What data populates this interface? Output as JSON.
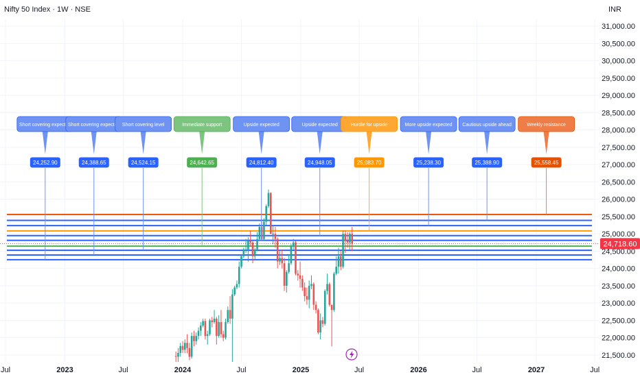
{
  "header": {
    "title": "Nifty 50 Index · 1W · NSE",
    "currency": "INR"
  },
  "colors": {
    "up": "#26a69a",
    "down": "#ef5350",
    "blue": "#2962ff",
    "light_blue": "#6f93f2",
    "green": "#4caf50",
    "orange": "#ff9800",
    "deep_orange": "#e65100",
    "grid": "#f0f3fa",
    "axis_text": "#131722",
    "last_price_bg": "#f23645"
  },
  "chart_data": {
    "type": "candlestick",
    "y_axis": {
      "min": 21300,
      "max": 31200,
      "ticks": [
        "21,500.00",
        "22,000.00",
        "22,500.00",
        "23,000.00",
        "23,500.00",
        "24,000.00",
        "24,500.00",
        "25,000.00",
        "25,500.00",
        "26,000.00",
        "26,500.00",
        "27,000.00",
        "27,500.00",
        "28,000.00",
        "28,500.00",
        "29,000.00",
        "29,500.00",
        "30,000.00",
        "30,500.00",
        "31,000.00"
      ]
    },
    "x_axis": {
      "labels": [
        {
          "label": "Jul",
          "date": "2022-07"
        },
        {
          "label": "2023",
          "date": "2023-01"
        },
        {
          "label": "Jul",
          "date": "2023-07"
        },
        {
          "label": "2024",
          "date": "2024-01"
        },
        {
          "label": "Jul",
          "date": "2024-07"
        },
        {
          "label": "2025",
          "date": "2025-01"
        },
        {
          "label": "Jul",
          "date": "2025-07"
        },
        {
          "label": "2026",
          "date": "2026-01"
        },
        {
          "label": "Jul",
          "date": "2026-07"
        },
        {
          "label": "2027",
          "date": "2027-01"
        },
        {
          "label": "Jul",
          "date": "2027-07"
        }
      ]
    },
    "last_price": {
      "value": 24718.6,
      "label": "24,718.60"
    },
    "levels": [
      {
        "date": "2022-11",
        "value": 24252.9,
        "label": "24,252.90",
        "note": "Short covering expected",
        "style": "light"
      },
      {
        "date": "2023-04",
        "value": 24388.65,
        "label": "24,388.65",
        "note": "Short covering expected",
        "style": "light"
      },
      {
        "date": "2023-09",
        "value": 24524.15,
        "label": "24,524.15",
        "note": "Short covering level",
        "style": "light"
      },
      {
        "date": "2024-03",
        "value": 24642.65,
        "label": "24,642.65",
        "note": "Immediate support",
        "style": "green"
      },
      {
        "date": "2024-09",
        "value": 24812.4,
        "label": "24,812.40",
        "note": "Upside expected",
        "style": "light"
      },
      {
        "date": "2025-03",
        "value": 24948.05,
        "label": "24,948.05",
        "note": "Upside expected",
        "style": "light"
      },
      {
        "date": "2025-08",
        "value": 25083.7,
        "label": "25,083.70",
        "note": "Hurdle for upside",
        "style": "orange"
      },
      {
        "date": "2026-02",
        "value": 25238.3,
        "label": "25,238.30",
        "note": "More upside expected",
        "style": "light"
      },
      {
        "date": "2026-08",
        "value": 25388.9,
        "label": "25,388.90",
        "note": "Cautious upside ahead",
        "style": "light"
      },
      {
        "date": "2027-02",
        "value": 25558.45,
        "label": "25,558.45",
        "note": "Weekly resistance",
        "style": "deep"
      }
    ],
    "candles": [
      {
        "d": "2023-12-11",
        "o": 21470,
        "h": 21600,
        "l": 21300,
        "c": 21450
      },
      {
        "d": "2023-12-18",
        "o": 21450,
        "h": 21700,
        "l": 21300,
        "c": 21560
      },
      {
        "d": "2023-12-25",
        "o": 21560,
        "h": 21850,
        "l": 21450,
        "c": 21760
      },
      {
        "d": "2024-01-01",
        "o": 21760,
        "h": 21900,
        "l": 21560,
        "c": 21650
      },
      {
        "d": "2024-01-08",
        "o": 21650,
        "h": 21950,
        "l": 21550,
        "c": 21850
      },
      {
        "d": "2024-01-15",
        "o": 21850,
        "h": 22100,
        "l": 21550,
        "c": 21700
      },
      {
        "d": "2024-01-22",
        "o": 21700,
        "h": 21850,
        "l": 21350,
        "c": 21450
      },
      {
        "d": "2024-01-29",
        "o": 21450,
        "h": 22150,
        "l": 21400,
        "c": 22050
      },
      {
        "d": "2024-02-05",
        "o": 22050,
        "h": 22200,
        "l": 21750,
        "c": 21900
      },
      {
        "d": "2024-02-12",
        "o": 21900,
        "h": 22150,
        "l": 21800,
        "c": 22050
      },
      {
        "d": "2024-02-19",
        "o": 22050,
        "h": 22300,
        "l": 21950,
        "c": 22200
      },
      {
        "d": "2024-02-26",
        "o": 22200,
        "h": 22450,
        "l": 22050,
        "c": 22350
      },
      {
        "d": "2024-03-04",
        "o": 22350,
        "h": 22550,
        "l": 22300,
        "c": 22480
      },
      {
        "d": "2024-03-11",
        "o": 22480,
        "h": 22550,
        "l": 21950,
        "c": 22050
      },
      {
        "d": "2024-03-18",
        "o": 22050,
        "h": 22200,
        "l": 21800,
        "c": 22100
      },
      {
        "d": "2024-03-25",
        "o": 22100,
        "h": 22550,
        "l": 22050,
        "c": 22500
      },
      {
        "d": "2024-04-01",
        "o": 22500,
        "h": 22600,
        "l": 22300,
        "c": 22450
      },
      {
        "d": "2024-04-08",
        "o": 22450,
        "h": 22800,
        "l": 22400,
        "c": 22550
      },
      {
        "d": "2024-04-15",
        "o": 22550,
        "h": 22600,
        "l": 21800,
        "c": 22050
      },
      {
        "d": "2024-04-22",
        "o": 22050,
        "h": 22650,
        "l": 22000,
        "c": 22450
      },
      {
        "d": "2024-04-29",
        "o": 22450,
        "h": 22800,
        "l": 22000,
        "c": 22100
      },
      {
        "d": "2024-05-06",
        "o": 22100,
        "h": 22200,
        "l": 21900,
        "c": 22000
      },
      {
        "d": "2024-05-13",
        "o": 22000,
        "h": 22550,
        "l": 21950,
        "c": 22450
      },
      {
        "d": "2024-05-20",
        "o": 22450,
        "h": 22900,
        "l": 22400,
        "c": 22800
      },
      {
        "d": "2024-05-27",
        "o": 22800,
        "h": 23200,
        "l": 22400,
        "c": 22550
      },
      {
        "d": "2024-06-03",
        "o": 22550,
        "h": 23400,
        "l": 21300,
        "c": 23250
      },
      {
        "d": "2024-06-10",
        "o": 23250,
        "h": 23500,
        "l": 23200,
        "c": 23450
      },
      {
        "d": "2024-06-17",
        "o": 23450,
        "h": 23650,
        "l": 23400,
        "c": 23550
      },
      {
        "d": "2024-06-24",
        "o": 23550,
        "h": 24200,
        "l": 23450,
        "c": 24050
      },
      {
        "d": "2024-07-01",
        "o": 24050,
        "h": 24400,
        "l": 24000,
        "c": 24350
      },
      {
        "d": "2024-07-08",
        "o": 24350,
        "h": 24600,
        "l": 24300,
        "c": 24550
      },
      {
        "d": "2024-07-15",
        "o": 24550,
        "h": 24850,
        "l": 24450,
        "c": 24550
      },
      {
        "d": "2024-07-22",
        "o": 24550,
        "h": 24900,
        "l": 24200,
        "c": 24800
      },
      {
        "d": "2024-07-29",
        "o": 24800,
        "h": 25100,
        "l": 24650,
        "c": 24750
      },
      {
        "d": "2024-08-05",
        "o": 24750,
        "h": 24800,
        "l": 24150,
        "c": 24350
      },
      {
        "d": "2024-08-12",
        "o": 24350,
        "h": 24600,
        "l": 24250,
        "c": 24550
      },
      {
        "d": "2024-08-19",
        "o": 24550,
        "h": 25050,
        "l": 24500,
        "c": 24850
      },
      {
        "d": "2024-08-26",
        "o": 24850,
        "h": 25300,
        "l": 24800,
        "c": 25200
      },
      {
        "d": "2024-09-02",
        "o": 25200,
        "h": 25350,
        "l": 24800,
        "c": 24850
      },
      {
        "d": "2024-09-09",
        "o": 24850,
        "h": 25450,
        "l": 24800,
        "c": 25350
      },
      {
        "d": "2024-09-16",
        "o": 25350,
        "h": 25850,
        "l": 25250,
        "c": 25800
      },
      {
        "d": "2024-09-23",
        "o": 25800,
        "h": 26280,
        "l": 25750,
        "c": 26180
      },
      {
        "d": "2024-09-30",
        "o": 26180,
        "h": 26200,
        "l": 25050,
        "c": 25000
      },
      {
        "d": "2024-10-07",
        "o": 25000,
        "h": 25250,
        "l": 24700,
        "c": 25000
      },
      {
        "d": "2024-10-14",
        "o": 25000,
        "h": 25200,
        "l": 24600,
        "c": 24850
      },
      {
        "d": "2024-10-21",
        "o": 24850,
        "h": 24900,
        "l": 24000,
        "c": 24200
      },
      {
        "d": "2024-10-28",
        "o": 24200,
        "h": 24500,
        "l": 24100,
        "c": 24300
      },
      {
        "d": "2024-11-04",
        "o": 24300,
        "h": 24550,
        "l": 24000,
        "c": 24150
      },
      {
        "d": "2024-11-11",
        "o": 24150,
        "h": 24300,
        "l": 23350,
        "c": 23500
      },
      {
        "d": "2024-11-18",
        "o": 23500,
        "h": 23950,
        "l": 23300,
        "c": 23900
      },
      {
        "d": "2024-11-25",
        "o": 23900,
        "h": 24400,
        "l": 23850,
        "c": 24150
      },
      {
        "d": "2024-12-02",
        "o": 24150,
        "h": 24700,
        "l": 24100,
        "c": 24650
      },
      {
        "d": "2024-12-09",
        "o": 24650,
        "h": 24850,
        "l": 24550,
        "c": 24750
      },
      {
        "d": "2024-12-16",
        "o": 24750,
        "h": 24800,
        "l": 23800,
        "c": 23850
      },
      {
        "d": "2024-12-23",
        "o": 23850,
        "h": 23950,
        "l": 23650,
        "c": 23800
      },
      {
        "d": "2024-12-30",
        "o": 23800,
        "h": 24200,
        "l": 23450,
        "c": 23700
      },
      {
        "d": "2025-01-06",
        "o": 23700,
        "h": 23800,
        "l": 23350,
        "c": 23450
      },
      {
        "d": "2025-01-13",
        "o": 23450,
        "h": 23600,
        "l": 23050,
        "c": 23200
      },
      {
        "d": "2025-01-20",
        "o": 23200,
        "h": 23450,
        "l": 22950,
        "c": 23100
      },
      {
        "d": "2025-01-27",
        "o": 23100,
        "h": 23650,
        "l": 22850,
        "c": 23500
      },
      {
        "d": "2025-02-03",
        "o": 23500,
        "h": 23800,
        "l": 23400,
        "c": 23550
      },
      {
        "d": "2025-02-10",
        "o": 23550,
        "h": 23600,
        "l": 22800,
        "c": 22950
      },
      {
        "d": "2025-02-17",
        "o": 22950,
        "h": 23050,
        "l": 22700,
        "c": 22800
      },
      {
        "d": "2025-02-24",
        "o": 22800,
        "h": 22850,
        "l": 22100,
        "c": 22150
      },
      {
        "d": "2025-03-03",
        "o": 22150,
        "h": 22700,
        "l": 21950,
        "c": 22500
      },
      {
        "d": "2025-03-10",
        "o": 22500,
        "h": 22600,
        "l": 22300,
        "c": 22400
      },
      {
        "d": "2025-03-17",
        "o": 22400,
        "h": 23400,
        "l": 22350,
        "c": 23350
      },
      {
        "d": "2025-03-24",
        "o": 23350,
        "h": 23850,
        "l": 23250,
        "c": 23550
      },
      {
        "d": "2025-03-31",
        "o": 23550,
        "h": 23600,
        "l": 22900,
        "c": 22950
      },
      {
        "d": "2025-04-07",
        "o": 22950,
        "h": 22950,
        "l": 21750,
        "c": 22800
      },
      {
        "d": "2025-04-14",
        "o": 22800,
        "h": 23900,
        "l": 22750,
        "c": 23850
      },
      {
        "d": "2025-04-21",
        "o": 23850,
        "h": 24350,
        "l": 23800,
        "c": 24050
      },
      {
        "d": "2025-04-28",
        "o": 24050,
        "h": 24600,
        "l": 23850,
        "c": 24350
      },
      {
        "d": "2025-05-05",
        "o": 24350,
        "h": 24500,
        "l": 23950,
        "c": 24050
      },
      {
        "d": "2025-05-12",
        "o": 24050,
        "h": 25100,
        "l": 24000,
        "c": 25000
      },
      {
        "d": "2025-05-19",
        "o": 25000,
        "h": 25100,
        "l": 24450,
        "c": 24800
      },
      {
        "d": "2025-05-26",
        "o": 24800,
        "h": 25050,
        "l": 24600,
        "c": 24750
      },
      {
        "d": "2025-06-02",
        "o": 24750,
        "h": 25050,
        "l": 24550,
        "c": 25000
      },
      {
        "d": "2025-06-09",
        "o": 25000,
        "h": 25200,
        "l": 24500,
        "c": 24720
      }
    ]
  }
}
